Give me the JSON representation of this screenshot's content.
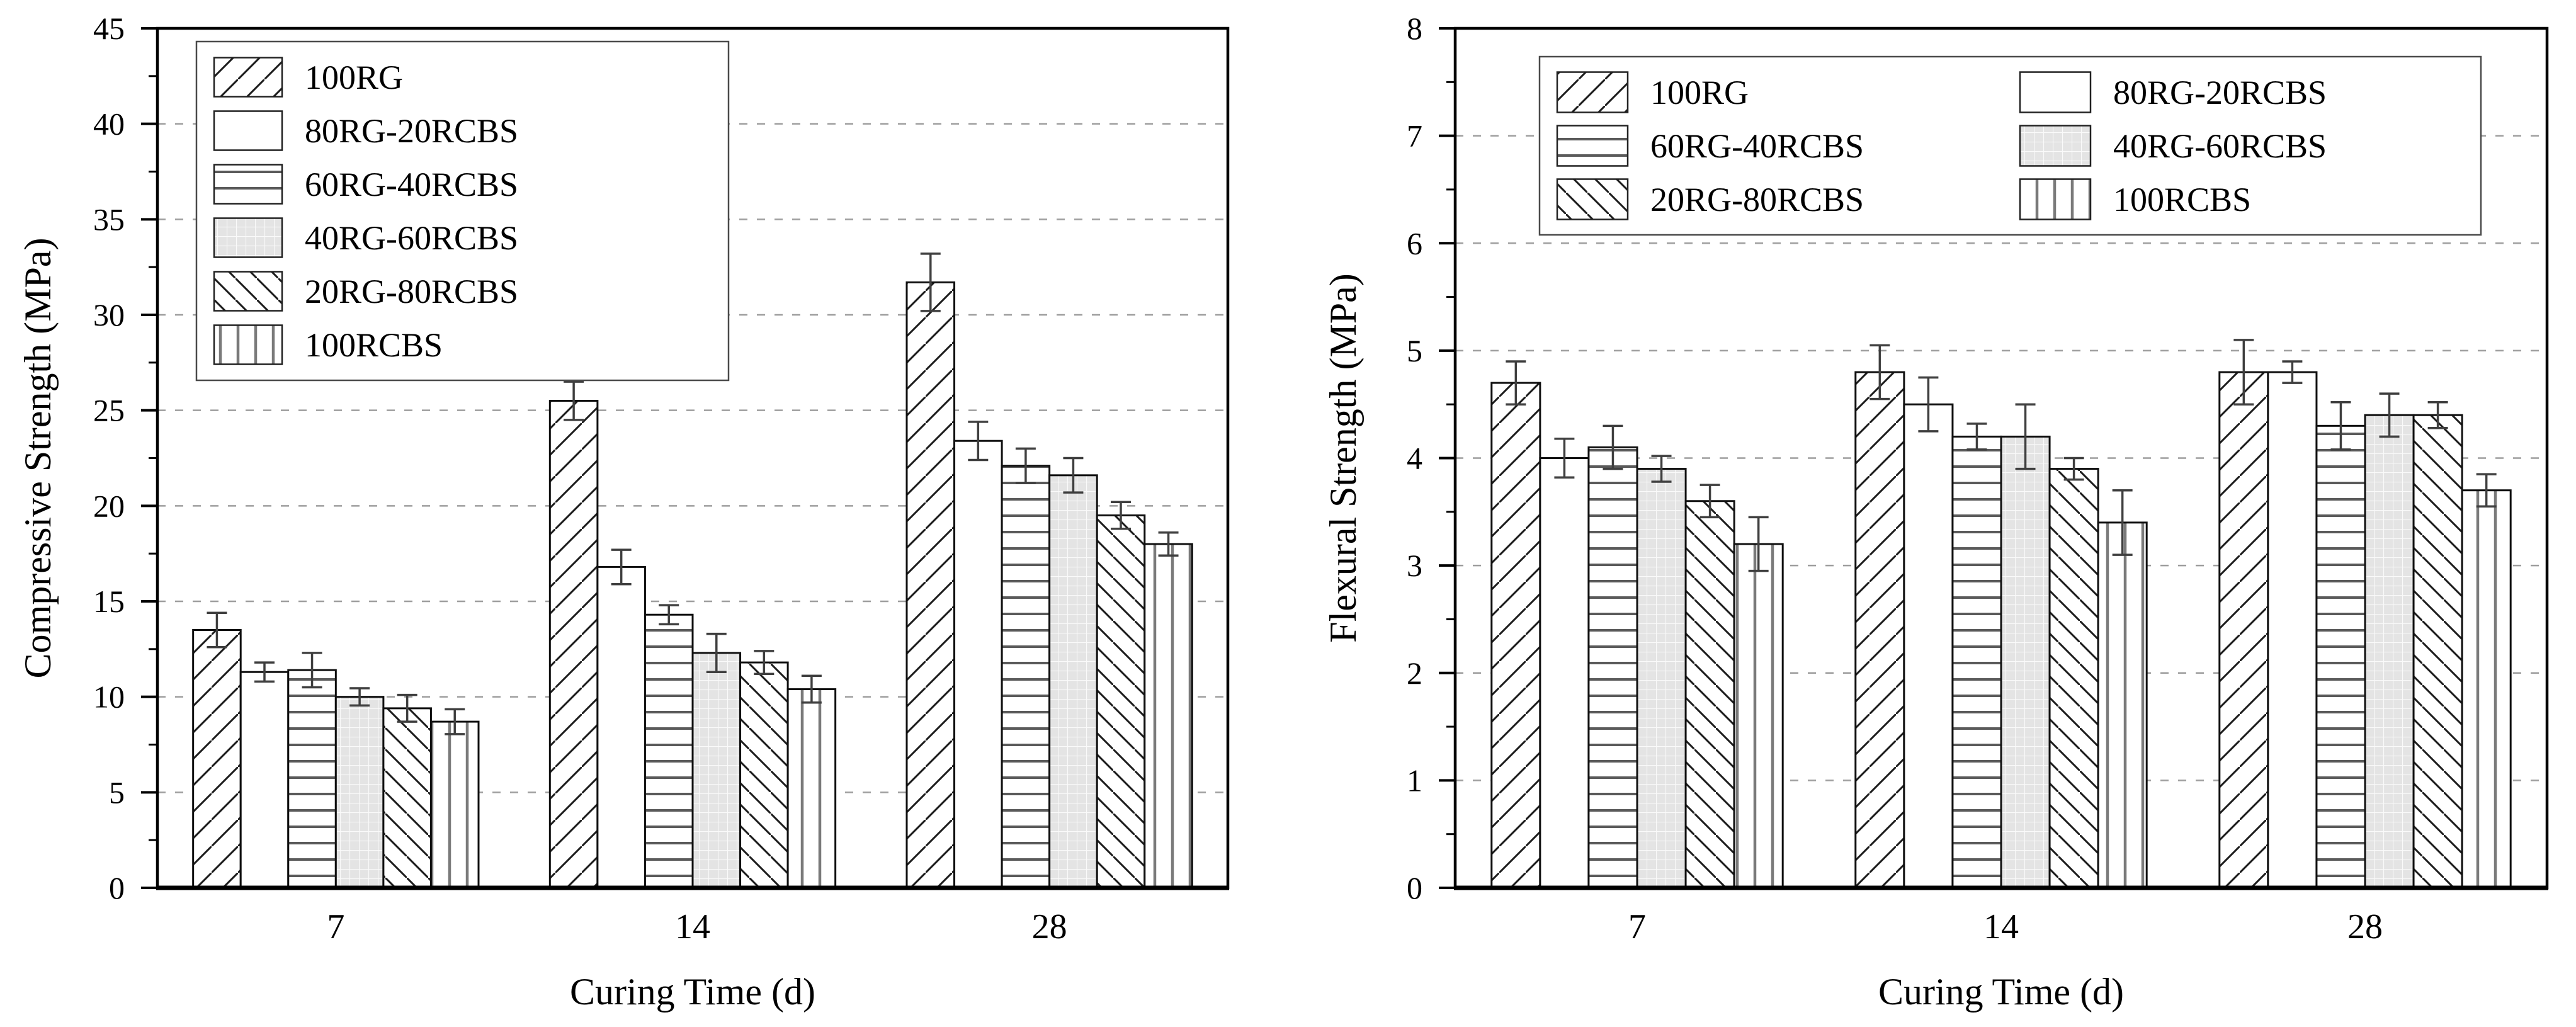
{
  "figure": {
    "background": "#ffffff",
    "description_left": "Compressive strength bar chart",
    "description_right": "Flexural strength bar chart"
  },
  "chart_data": [
    {
      "type": "bar",
      "title": "",
      "xlabel": "Curing Time (d)",
      "ylabel": "Compressive Strength (MPa)",
      "categories": [
        "7",
        "14",
        "28"
      ],
      "ylim": [
        0,
        45
      ],
      "ytick_step": 5,
      "yminor_step": 2.5,
      "ytick_labels": [
        "0",
        "5",
        "10",
        "15",
        "20",
        "25",
        "30",
        "35",
        "40",
        "45"
      ],
      "grid": "horizontal-dashed",
      "error_bars": true,
      "legend": {
        "position": "upper-left",
        "columns": 1,
        "entries": [
          "100RG",
          "80RG-20RCBS",
          "60RG-40RCBS",
          "40RG-60RCBS",
          "20RG-80RCBS",
          "100RCBS"
        ]
      },
      "series": [
        {
          "name": "100RG",
          "pattern": "diagonal-up-hatch",
          "values": [
            13.5,
            25.5,
            31.7
          ],
          "errors": [
            0.9,
            1.0,
            1.5
          ]
        },
        {
          "name": "80RG-20RCBS",
          "pattern": "blank",
          "values": [
            11.3,
            16.8,
            23.4
          ],
          "errors": [
            0.5,
            0.9,
            1.0
          ]
        },
        {
          "name": "60RG-40RCBS",
          "pattern": "horizontal-lines",
          "values": [
            11.4,
            14.3,
            22.1
          ],
          "errors": [
            0.9,
            0.5,
            0.9
          ]
        },
        {
          "name": "40RG-60RCBS",
          "pattern": "gray-grid",
          "values": [
            10.0,
            12.3,
            21.6
          ],
          "errors": [
            0.45,
            1.0,
            0.9
          ]
        },
        {
          "name": "20RG-80RCBS",
          "pattern": "diagonal-down-hatch",
          "values": [
            9.4,
            11.8,
            19.5
          ],
          "errors": [
            0.7,
            0.6,
            0.7
          ]
        },
        {
          "name": "100RCBS",
          "pattern": "vertical-lines",
          "values": [
            8.7,
            10.4,
            18.0
          ],
          "errors": [
            0.65,
            0.7,
            0.6
          ]
        }
      ]
    },
    {
      "type": "bar",
      "title": "",
      "xlabel": "Curing Time (d)",
      "ylabel": "Flexural Strength (MPa)",
      "categories": [
        "7",
        "14",
        "28"
      ],
      "ylim": [
        0,
        8
      ],
      "ytick_step": 1,
      "yminor_step": 0.5,
      "ytick_labels": [
        "0",
        "1",
        "2",
        "3",
        "4",
        "5",
        "6",
        "7",
        "8"
      ],
      "grid": "horizontal-dashed",
      "error_bars": true,
      "legend": {
        "position": "upper-center",
        "columns": 2,
        "entries": [
          "100RG",
          "80RG-20RCBS",
          "60RG-40RCBS",
          "40RG-60RCBS",
          "20RG-80RCBS",
          "100RCBS"
        ]
      },
      "series": [
        {
          "name": "100RG",
          "pattern": "diagonal-up-hatch",
          "values": [
            4.7,
            4.8,
            4.8
          ],
          "errors": [
            0.2,
            0.25,
            0.3
          ]
        },
        {
          "name": "80RG-20RCBS",
          "pattern": "blank",
          "values": [
            4.0,
            4.5,
            4.8
          ],
          "errors": [
            0.18,
            0.25,
            0.1
          ]
        },
        {
          "name": "60RG-40RCBS",
          "pattern": "horizontal-lines",
          "values": [
            4.1,
            4.2,
            4.3
          ],
          "errors": [
            0.2,
            0.12,
            0.22
          ]
        },
        {
          "name": "40RG-60RCBS",
          "pattern": "gray-grid",
          "values": [
            3.9,
            4.2,
            4.4
          ],
          "errors": [
            0.12,
            0.3,
            0.2
          ]
        },
        {
          "name": "20RG-80RCBS",
          "pattern": "diagonal-down-hatch",
          "values": [
            3.6,
            3.9,
            4.4
          ],
          "errors": [
            0.15,
            0.1,
            0.12
          ]
        },
        {
          "name": "100RCBS",
          "pattern": "vertical-lines",
          "values": [
            3.2,
            3.4,
            3.7
          ],
          "errors": [
            0.25,
            0.3,
            0.15
          ]
        }
      ]
    }
  ],
  "style": {
    "hatch_color": "#1c1c1c",
    "bar_outline": "#101010",
    "grid_color": "#9e9e9e",
    "error_color": "#3f3f3f",
    "gray_fill": "#e4e4e4",
    "axis_color": "#000000",
    "legend_border": "#4a4a4a",
    "background": "#ffffff"
  }
}
